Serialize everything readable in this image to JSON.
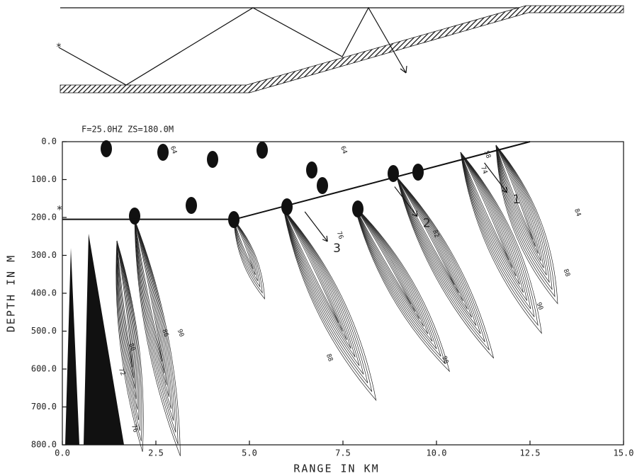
{
  "chart_data": {
    "type": "line",
    "title": "F=25.0HZ  ZS=180.0M",
    "xlabel": "RANGE IN KM",
    "ylabel": "DEPTH IN M",
    "xlim": [
      0,
      15
    ],
    "ylim": [
      0,
      800
    ],
    "y_inverted": true,
    "xticks": [
      {
        "value": 0,
        "label": "0.0"
      },
      {
        "value": 2.5,
        "label": "2.5"
      },
      {
        "value": 5,
        "label": "5.0"
      },
      {
        "value": 7.5,
        "label": "7.5"
      },
      {
        "value": 10,
        "label": "10.0"
      },
      {
        "value": 12.5,
        "label": "12.5"
      },
      {
        "value": 15,
        "label": "15.0"
      }
    ],
    "yticks": [
      {
        "value": 0,
        "label": "0.0"
      },
      {
        "value": 100,
        "label": "100.0"
      },
      {
        "value": 200,
        "label": "200.0"
      },
      {
        "value": 300,
        "label": "300.0"
      },
      {
        "value": 400,
        "label": "400.0"
      },
      {
        "value": 500,
        "label": "500.0"
      },
      {
        "value": 600,
        "label": "600.0"
      },
      {
        "value": 700,
        "label": "700.0"
      },
      {
        "value": 800,
        "label": "800.0"
      }
    ],
    "series": [
      {
        "color": "#111111",
        "x": [
          0,
          4.6,
          12.5
        ],
        "values": [
          205,
          205,
          0
        ]
      }
    ],
    "source": {
      "label": "*",
      "x": 0,
      "y": 180
    },
    "annotations": [
      {
        "text": "1",
        "x": 12.0,
        "y": 153
      },
      {
        "text": "2",
        "x": 9.6,
        "y": 216
      },
      {
        "text": "3",
        "x": 7.2,
        "y": 282
      }
    ],
    "contour_labels": [
      {
        "text": "64",
        "x": 2.97,
        "y": 22
      },
      {
        "text": "64",
        "x": 7.52,
        "y": 22
      },
      {
        "text": "58",
        "x": 11.36,
        "y": 34
      },
      {
        "text": "74",
        "x": 11.27,
        "y": 75
      },
      {
        "text": "76",
        "x": 7.42,
        "y": 247
      },
      {
        "text": "82",
        "x": 9.98,
        "y": 243
      },
      {
        "text": "84",
        "x": 13.77,
        "y": 187
      },
      {
        "text": "88",
        "x": 13.48,
        "y": 346
      },
      {
        "text": "90",
        "x": 12.76,
        "y": 434
      },
      {
        "text": "90",
        "x": 10.23,
        "y": 576
      },
      {
        "text": "88",
        "x": 7.14,
        "y": 570
      },
      {
        "text": "80",
        "x": 1.86,
        "y": 542
      },
      {
        "text": "72",
        "x": 1.59,
        "y": 607
      },
      {
        "text": "76",
        "x": 1.93,
        "y": 757
      },
      {
        "text": "86",
        "x": 2.75,
        "y": 505
      },
      {
        "text": "90",
        "x": 3.16,
        "y": 505
      }
    ]
  }
}
